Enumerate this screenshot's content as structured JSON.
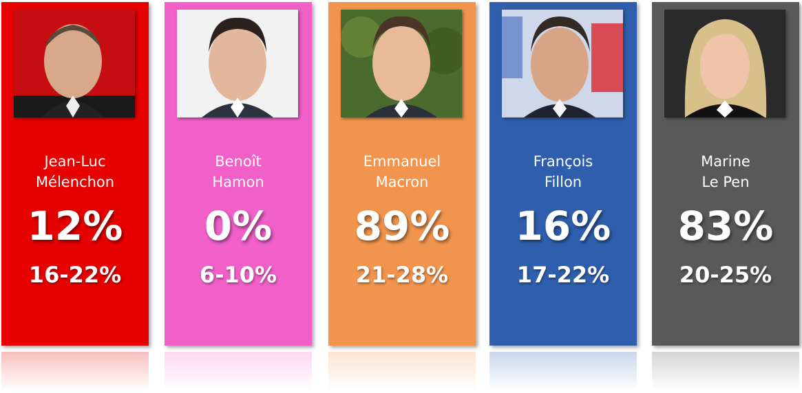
{
  "candidates": [
    {
      "first_name": "Jean-Luc",
      "last_name": "Mélenchon",
      "percent": "12%",
      "range": "16-22%",
      "color": "#e60000",
      "photo_background": "#c50d12"
    },
    {
      "first_name": "Benoît",
      "last_name": "Hamon",
      "percent": "0%",
      "range": "6-10%",
      "color": "#f060c8",
      "photo_background": "#f2f2f2"
    },
    {
      "first_name": "Emmanuel",
      "last_name": "Macron",
      "percent": "89%",
      "range": "21-28%",
      "color": "#f0944e",
      "photo_background": "#4a6b2e"
    },
    {
      "first_name": "François",
      "last_name": "Fillon",
      "percent": "16%",
      "range": "17-22%",
      "color": "#2f5fac",
      "photo_background": "#cfd8ea"
    },
    {
      "first_name": "Marine",
      "last_name": "Le Pen",
      "percent": "83%",
      "range": "20-25%",
      "color": "#595959",
      "photo_background": "#2a2a2a"
    }
  ]
}
